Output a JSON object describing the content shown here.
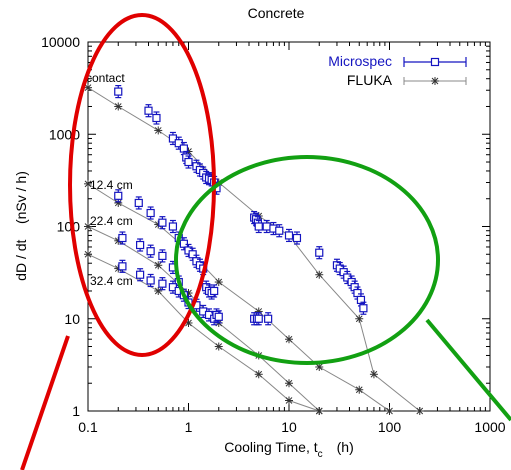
{
  "chart_data": {
    "type": "scatter",
    "title": "Concrete",
    "xlabel_main": "Cooling Time, t",
    "xlabel_sub": "c",
    "xlabel_unit": "(h)",
    "ylabel": "dD / dt    (nSv / h)",
    "xscale": "log",
    "yscale": "log",
    "xlim": [
      0.1,
      1000
    ],
    "ylim": [
      1,
      10000
    ],
    "x_ticks": [
      "0.1",
      "1",
      "10",
      "100",
      "1000"
    ],
    "y_ticks": [
      "1",
      "10",
      "100",
      "1000",
      "10000"
    ],
    "grid": false,
    "legend_position": "top-right",
    "series": [
      {
        "name": "Microspec",
        "marker": "square",
        "color": "#1515c0",
        "groups": [
          {
            "x": [
              0.2,
              0.4,
              0.48,
              0.7,
              0.8,
              0.9,
              0.95,
              1.0,
              1.2,
              1.3,
              1.4,
              1.5,
              1.6,
              1.7,
              1.8,
              1.9,
              4.5,
              4.7,
              4.9,
              5.0,
              6.0,
              7.0,
              8.0,
              10.0,
              12.0,
              20.0,
              30.0,
              32.0,
              35.0,
              38.0,
              42.0,
              45.0,
              48.0,
              52.0,
              55.0
            ],
            "y": [
              2900,
              1800,
              1500,
              900,
              800,
              700,
              560,
              500,
              450,
              410,
              380,
              340,
              330,
              320,
              300,
              260,
              125,
              120,
              110,
              100,
              100,
              95,
              90,
              80,
              75,
              52,
              38,
              35,
              32,
              28,
              25,
              22,
              19,
              16,
              13
            ]
          },
          {
            "x": [
              0.2,
              0.32,
              0.42,
              0.55,
              0.7,
              0.8,
              0.9,
              1.0,
              1.1,
              1.2,
              1.3,
              1.4,
              1.5,
              1.6,
              1.7,
              1.8
            ],
            "y": [
              215,
              180,
              140,
              110,
              100,
              75,
              65,
              55,
              50,
              42,
              38,
              35,
              22,
              20,
              19,
              20
            ]
          },
          {
            "x": [
              0.22,
              0.33,
              0.42,
              0.55,
              0.7,
              0.8
            ],
            "y": [
              75,
              63,
              54,
              48,
              36,
              25
            ]
          },
          {
            "x": [
              0.22,
              0.33,
              0.42,
              0.55,
              0.7,
              0.8,
              0.9,
              1.0,
              1.2,
              1.4,
              1.6,
              1.8,
              1.9,
              2.0
            ],
            "y": [
              37,
              30,
              26,
              24,
              22,
              20,
              18,
              15,
              14,
              12,
              11,
              10,
              11,
              10.5
            ]
          },
          {
            "x": [
              4.5,
              4.8,
              5.0,
              6.2
            ],
            "y": [
              10,
              10,
              10,
              10
            ]
          }
        ]
      },
      {
        "name": "FLUKA",
        "marker": "asterisk",
        "color": "#555555",
        "groups": [
          {
            "x": [
              0.1,
              0.2,
              0.5,
              1,
              2,
              5,
              10,
              20,
              50,
              70,
              200
            ],
            "y": [
              3200,
              2000,
              1100,
              650,
              300,
              130,
              80,
              30,
              10,
              2.5,
              1
            ]
          },
          {
            "x": [
              0.1,
              0.2,
              0.5,
              1,
              2,
              5,
              10,
              20,
              50,
              100
            ],
            "y": [
              290,
              180,
              105,
              55,
              25,
              12,
              6,
              3,
              1.7,
              1
            ]
          },
          {
            "x": [
              0.1,
              0.2,
              0.5,
              1,
              2,
              5,
              10,
              20
            ],
            "y": [
              100,
              70,
              38,
              19,
              9,
              4,
              2,
              1
            ]
          },
          {
            "x": [
              0.1,
              0.2,
              0.5,
              1,
              2,
              5,
              10,
              20
            ],
            "y": [
              50,
              35,
              20,
              9,
              5,
              2.5,
              1.3,
              1
            ]
          }
        ]
      }
    ],
    "annotations": [
      "contact",
      "12.4 cm",
      "22.4 cm",
      "32.4 cm"
    ],
    "overlays": [
      {
        "shape": "ellipse",
        "color": "#e00000"
      },
      {
        "shape": "ellipse",
        "color": "#12a012"
      }
    ]
  }
}
